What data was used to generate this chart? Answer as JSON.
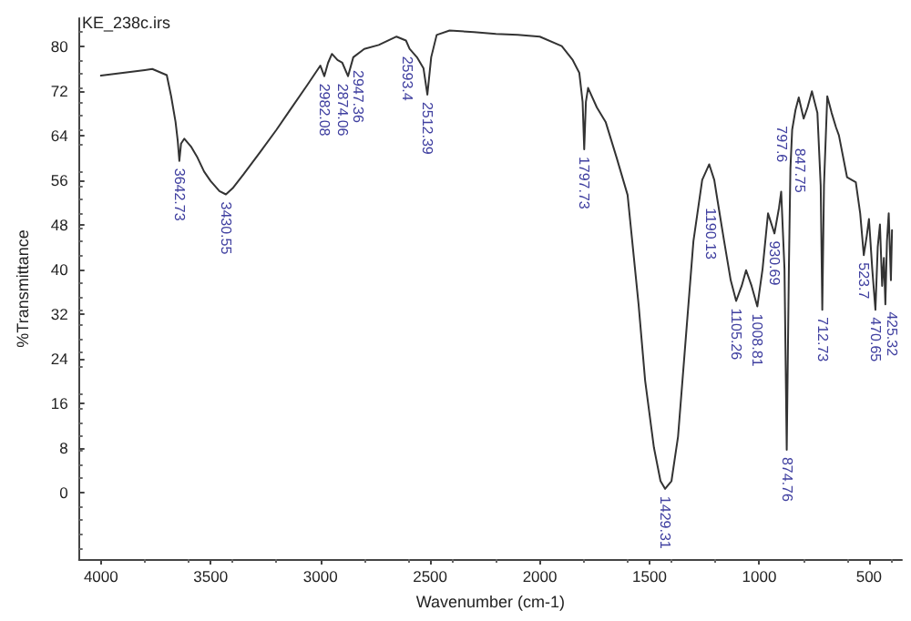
{
  "chart_data": {
    "type": "line",
    "title": "KE_238c.irs",
    "xlabel": "Wavenumber (cm-1)",
    "ylabel": "%Transmittance",
    "xlim": [
      4100,
      350
    ],
    "xticks": [
      4000,
      3500,
      3000,
      2500,
      2000,
      1500,
      1000,
      500
    ],
    "ylim": [
      -12,
      85
    ],
    "yticks": [
      0,
      8,
      16,
      24,
      32,
      40,
      48,
      56,
      64,
      72,
      80
    ],
    "grid": false,
    "marker": "none",
    "line_style": "solid",
    "series": [
      {
        "color": "#333333",
        "x": [
          4000,
          3900,
          3800,
          3766,
          3700,
          3680,
          3660,
          3650,
          3642.73,
          3635,
          3620,
          3590,
          3560,
          3530,
          3500,
          3460,
          3430.55,
          3400,
          3350,
          3274,
          3200,
          3137,
          3060,
          3000,
          2982.08,
          2965,
          2947.36,
          2922,
          2900,
          2874.06,
          2850,
          2800,
          2734,
          2653,
          2610,
          2593.4,
          2560,
          2530,
          2512.39,
          2495,
          2470,
          2411,
          2300,
          2200,
          2100,
          2000,
          1900,
          1850,
          1820,
          1805,
          1797.73,
          1790,
          1780,
          1740,
          1700,
          1650,
          1600,
          1550,
          1520,
          1480,
          1450,
          1429.31,
          1400,
          1370,
          1340,
          1300,
          1260,
          1228,
          1205,
          1190.13,
          1160,
          1130,
          1105.26,
          1080,
          1060,
          1035,
          1008.81,
          985,
          960,
          930.69,
          910,
          900,
          885,
          874.76,
          865,
          858,
          850,
          835,
          820,
          797.6,
          780,
          760,
          735,
          720,
          712.73,
          705,
          690,
          670,
          650,
          637,
          600,
          560,
          540,
          523.7,
          510,
          500,
          485,
          470.65,
          460,
          450,
          440,
          432,
          425.32,
          418,
          410,
          400,
          395
        ],
        "values": [
          74.7,
          75.2,
          75.7,
          75.9,
          74.8,
          71,
          66.4,
          63,
          59.4,
          62.5,
          63.4,
          62,
          60,
          57.5,
          55.8,
          54,
          53.4,
          54.5,
          57,
          61,
          65,
          68.6,
          73,
          76.5,
          74.6,
          77,
          78.6,
          77.5,
          77,
          74.6,
          78,
          79.5,
          80.2,
          81.7,
          81,
          79.5,
          78,
          76,
          71.3,
          78,
          82,
          82.8,
          82.5,
          82.2,
          82,
          81.7,
          80,
          77.5,
          75.2,
          70,
          61.5,
          70,
          72.5,
          69,
          66.4,
          60,
          53.3,
          33.7,
          20,
          8,
          2,
          0.6,
          2,
          10,
          25,
          45,
          56,
          58.8,
          56,
          52.3,
          45,
          38,
          34.3,
          37,
          39.8,
          37,
          33.3,
          40,
          50,
          46.4,
          51,
          53.9,
          40,
          7.6,
          40,
          58,
          65,
          68.5,
          70.8,
          67,
          69,
          71.9,
          68,
          55,
          32.7,
          55,
          71,
          68,
          65.4,
          64,
          56.5,
          55.6,
          50,
          42.5,
          46,
          49,
          40,
          32.7,
          44,
          48,
          37,
          42,
          33.7,
          45,
          50,
          38,
          47
        ]
      }
    ],
    "annotations": [
      {
        "text": "3642.73",
        "x": 3642.73,
        "y": 59.4
      },
      {
        "text": "3430.55",
        "x": 3430.55,
        "y": 53.4
      },
      {
        "text": "2982.08",
        "x": 2982.08,
        "y": 74.6
      },
      {
        "text": "2947.36",
        "x": 2947.36,
        "y": 77
      },
      {
        "text": "2874.06",
        "x": 2874.06,
        "y": 74.6
      },
      {
        "text": "2593.4",
        "x": 2593.4,
        "y": 79.5
      },
      {
        "text": "2512.39",
        "x": 2512.39,
        "y": 71.3
      },
      {
        "text": "1797.73",
        "x": 1797.73,
        "y": 61.5
      },
      {
        "text": "1429.31",
        "x": 1429.31,
        "y": 0.6
      },
      {
        "text": "1190.13",
        "x": 1190.13,
        "y": 52.3
      },
      {
        "text": "1105.26",
        "x": 1105.26,
        "y": 34.3
      },
      {
        "text": "1008.81",
        "x": 1008.81,
        "y": 33.3
      },
      {
        "text": "930.69",
        "x": 930.69,
        "y": 46.4
      },
      {
        "text": "874.76",
        "x": 874.76,
        "y": 7.6
      },
      {
        "text": "847.75",
        "x": 847.75,
        "y": 63
      },
      {
        "text": "797.6",
        "x": 797.6,
        "y": 67
      },
      {
        "text": "712.73",
        "x": 712.73,
        "y": 32.7
      },
      {
        "text": "523.7",
        "x": 523.7,
        "y": 42.5
      },
      {
        "text": "470.65",
        "x": 470.65,
        "y": 32.7
      },
      {
        "text": "425.32",
        "x": 425.32,
        "y": 33.7
      }
    ]
  }
}
